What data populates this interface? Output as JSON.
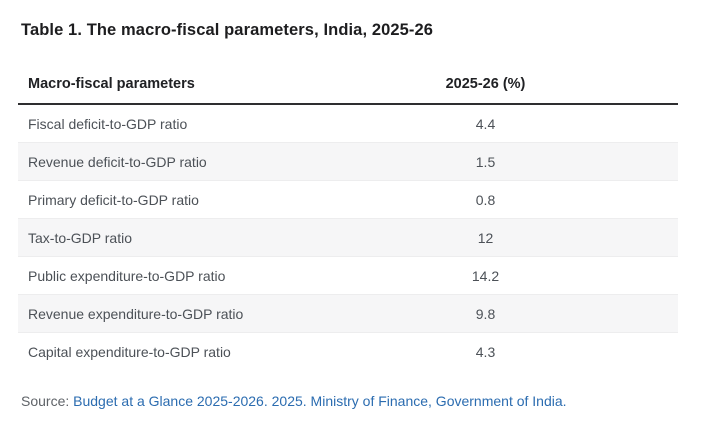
{
  "title": "Table 1. The macro-fiscal parameters, India, 2025-26",
  "table": {
    "columns": [
      "Macro-fiscal parameters",
      "2025-26 (%)"
    ],
    "rows": [
      {
        "parameter": "Fiscal deficit-to-GDP ratio",
        "value": "4.4"
      },
      {
        "parameter": "Revenue deficit-to-GDP ratio",
        "value": "1.5"
      },
      {
        "parameter": "Primary deficit-to-GDP ratio",
        "value": "0.8"
      },
      {
        "parameter": "Tax-to-GDP ratio",
        "value": "12"
      },
      {
        "parameter": "Public expenditure-to-GDP ratio",
        "value": "14.2"
      },
      {
        "parameter": "Revenue expenditure-to-GDP ratio",
        "value": "9.8"
      },
      {
        "parameter": "Capital expenditure-to-GDP ratio",
        "value": "4.3"
      }
    ]
  },
  "source": {
    "label": "Source:",
    "link_text": "Budget at a Glance 2025-2026. 2025. Ministry of Finance, Government of India."
  },
  "colors": {
    "heading_text": "#1d1d1f",
    "body_text": "#4c5157",
    "header_rule": "#2e2e30",
    "alt_row_bg": "#f6f6f7",
    "row_border": "#ededee",
    "source_label": "#5f6368",
    "link_blue": "#2b6cb0"
  },
  "chart_data": {
    "type": "table",
    "title": "Table 1. The macro-fiscal parameters, India, 2025-26",
    "columns": [
      "Macro-fiscal parameters",
      "2025-26 (%)"
    ],
    "categories": [
      "Fiscal deficit-to-GDP ratio",
      "Revenue deficit-to-GDP ratio",
      "Primary deficit-to-GDP ratio",
      "Tax-to-GDP ratio",
      "Public expenditure-to-GDP ratio",
      "Revenue expenditure-to-GDP ratio",
      "Capital expenditure-to-GDP ratio"
    ],
    "values": [
      4.4,
      1.5,
      0.8,
      12,
      14.2,
      9.8,
      4.3
    ],
    "source": "Budget at a Glance 2025-2026. 2025. Ministry of Finance, Government of India."
  }
}
